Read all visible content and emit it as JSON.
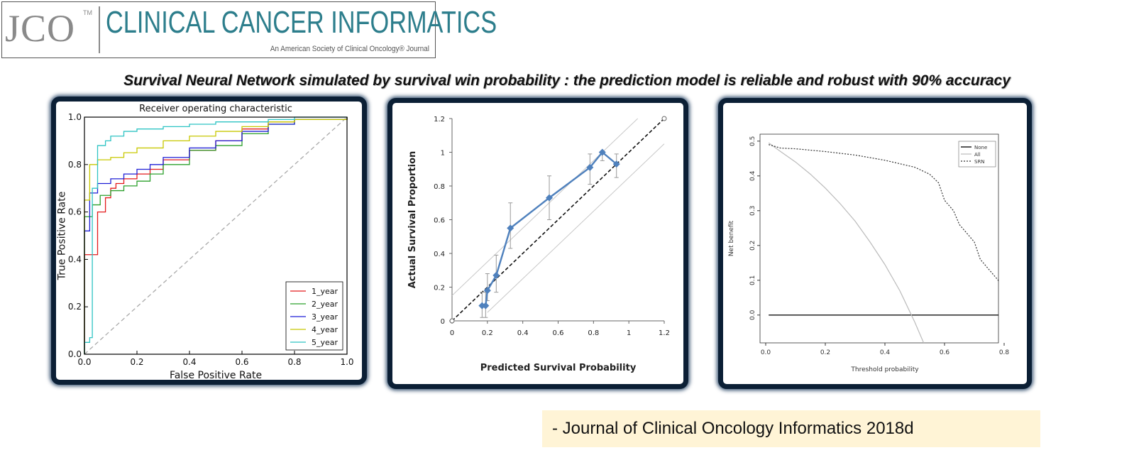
{
  "logo": {
    "jco": "JCO",
    "tm": "TM",
    "title": "CLINICAL CANCER INFORMATICS",
    "subtitle": "An American Society of Clinical Oncology® Journal"
  },
  "headline": "Survival Neural Network simulated by survival win probability :  the prediction model is reliable and robust  with 90% accuracy",
  "citation": "-   Journal of Clinical Oncology Informatics 2018d",
  "colors": {
    "panel_border": "#0b1f35",
    "calib_line": "#4f81bd",
    "roc_1": "#e41a1c",
    "roc_2": "#2ca02c",
    "roc_3": "#1f1fd6",
    "roc_4": "#c8c800",
    "roc_5": "#2ec4c4"
  },
  "chart_data": [
    {
      "type": "line",
      "title": "Receiver operating characteristic",
      "xlabel": "False Positive Rate",
      "ylabel": "True Positive Rate",
      "xlim": [
        0,
        1
      ],
      "ylim": [
        0,
        1
      ],
      "xticks": [
        "0.0",
        "0.2",
        "0.4",
        "0.6",
        "0.8",
        "1.0"
      ],
      "yticks": [
        "0.0",
        "0.2",
        "0.4",
        "0.6",
        "0.8",
        "1.0"
      ],
      "legend_position": "bottom-right",
      "series": [
        {
          "name": "1_year",
          "x": [
            0,
            0,
            0.05,
            0.05,
            0.08,
            0.08,
            0.1,
            0.12,
            0.15,
            0.2,
            0.25,
            0.3,
            0.4,
            0.5,
            0.6,
            0.7,
            0.8,
            1
          ],
          "y": [
            0,
            0.42,
            0.42,
            0.6,
            0.62,
            0.66,
            0.7,
            0.72,
            0.74,
            0.76,
            0.78,
            0.82,
            0.86,
            0.9,
            0.95,
            0.98,
            0.99,
            1
          ]
        },
        {
          "name": "2_year",
          "x": [
            0,
            0,
            0.03,
            0.06,
            0.1,
            0.15,
            0.2,
            0.25,
            0.3,
            0.4,
            0.5,
            0.6,
            0.7,
            0.8,
            1
          ],
          "y": [
            0,
            0.58,
            0.63,
            0.67,
            0.69,
            0.71,
            0.73,
            0.76,
            0.8,
            0.86,
            0.88,
            0.93,
            0.97,
            0.99,
            1
          ]
        },
        {
          "name": "3_year",
          "x": [
            0,
            0,
            0.02,
            0.05,
            0.1,
            0.15,
            0.2,
            0.25,
            0.3,
            0.4,
            0.5,
            0.6,
            0.7,
            0.8,
            1
          ],
          "y": [
            0,
            0.52,
            0.68,
            0.72,
            0.74,
            0.76,
            0.78,
            0.8,
            0.83,
            0.87,
            0.9,
            0.94,
            0.97,
            0.99,
            1
          ]
        },
        {
          "name": "4_year",
          "x": [
            0,
            0,
            0.02,
            0.05,
            0.1,
            0.15,
            0.2,
            0.3,
            0.4,
            0.5,
            0.6,
            0.7,
            0.8,
            1
          ],
          "y": [
            0,
            0.65,
            0.8,
            0.82,
            0.83,
            0.85,
            0.87,
            0.9,
            0.92,
            0.94,
            0.96,
            0.98,
            0.99,
            1
          ]
        },
        {
          "name": "5_year",
          "x": [
            0,
            0,
            0.02,
            0.03,
            0.05,
            0.08,
            0.1,
            0.15,
            0.2,
            0.3,
            0.4,
            0.5,
            0.6,
            0.7,
            0.8,
            1
          ],
          "y": [
            0,
            0.05,
            0.07,
            0.7,
            0.88,
            0.9,
            0.92,
            0.94,
            0.95,
            0.96,
            0.97,
            0.98,
            0.98,
            0.99,
            1,
            1
          ]
        },
        {
          "name": "",
          "x": [
            0,
            1
          ],
          "y": [
            0,
            1
          ]
        }
      ]
    },
    {
      "type": "line",
      "title": "",
      "xlabel": "Predicted Survival Probability",
      "ylabel": "Actual Survival Proportion",
      "xlim": [
        0,
        1.2
      ],
      "ylim": [
        0,
        1.2
      ],
      "xticks": [
        "0",
        "0.2",
        "0.4",
        "0.6",
        "0.8",
        "1",
        "1.2"
      ],
      "yticks": [
        "0",
        "0.2",
        "0.4",
        "0.6",
        "0.8",
        "1",
        "1.2"
      ],
      "series": [
        {
          "name": "",
          "x": [
            0.17,
            0.19,
            0.2,
            0.25,
            0.33,
            0.55,
            0.78,
            0.85,
            0.93
          ],
          "y": [
            0.09,
            0.09,
            0.18,
            0.27,
            0.55,
            0.73,
            0.91,
            1.0,
            0.93
          ],
          "err_low": [
            0.07,
            0.07,
            0.06,
            0.1,
            0.12,
            0.13,
            0.1,
            0.05,
            0.08
          ],
          "err_high": [
            0.08,
            0.08,
            0.1,
            0.12,
            0.15,
            0.13,
            0.08,
            0.0,
            0.06
          ]
        }
      ],
      "reference_lines": [
        {
          "x": [
            0,
            1.2
          ],
          "y": [
            0,
            1.2
          ],
          "style": "dashed"
        },
        {
          "x": [
            0,
            1.2
          ],
          "y": [
            0.15,
            1.35
          ],
          "style": "band"
        },
        {
          "x": [
            0.2,
            1.2
          ],
          "y": [
            0.05,
            1.05
          ],
          "style": "band"
        }
      ]
    },
    {
      "type": "line",
      "title": "",
      "xlabel": "Threshold probability",
      "ylabel": "Net benefit",
      "xlim": [
        0,
        0.8
      ],
      "ylim": [
        -0.08,
        0.52
      ],
      "xticks": [
        "0.0",
        "0.2",
        "0.4",
        "0.6",
        "0.8"
      ],
      "yticks": [
        "0.0",
        "0.1",
        "0.2",
        "0.3",
        "0.4",
        "0.5"
      ],
      "legend_position": "top-right",
      "series": [
        {
          "name": "None",
          "x": [
            0.01,
            0.8
          ],
          "y": [
            0,
            0
          ]
        },
        {
          "name": "All",
          "x": [
            0.01,
            0.05,
            0.1,
            0.15,
            0.2,
            0.25,
            0.3,
            0.35,
            0.4,
            0.45,
            0.5,
            0.53
          ],
          "y": [
            0.495,
            0.47,
            0.44,
            0.405,
            0.365,
            0.32,
            0.27,
            0.21,
            0.145,
            0.07,
            -0.02,
            -0.08
          ]
        },
        {
          "name": "SRN",
          "x": [
            0.01,
            0.05,
            0.1,
            0.2,
            0.3,
            0.4,
            0.5,
            0.55,
            0.58,
            0.6,
            0.63,
            0.65,
            0.7,
            0.72,
            0.75,
            0.78,
            0.8
          ],
          "y": [
            0.49,
            0.48,
            0.478,
            0.47,
            0.46,
            0.445,
            0.425,
            0.405,
            0.38,
            0.33,
            0.3,
            0.26,
            0.21,
            0.16,
            0.13,
            0.1,
            0.06
          ]
        }
      ]
    }
  ]
}
